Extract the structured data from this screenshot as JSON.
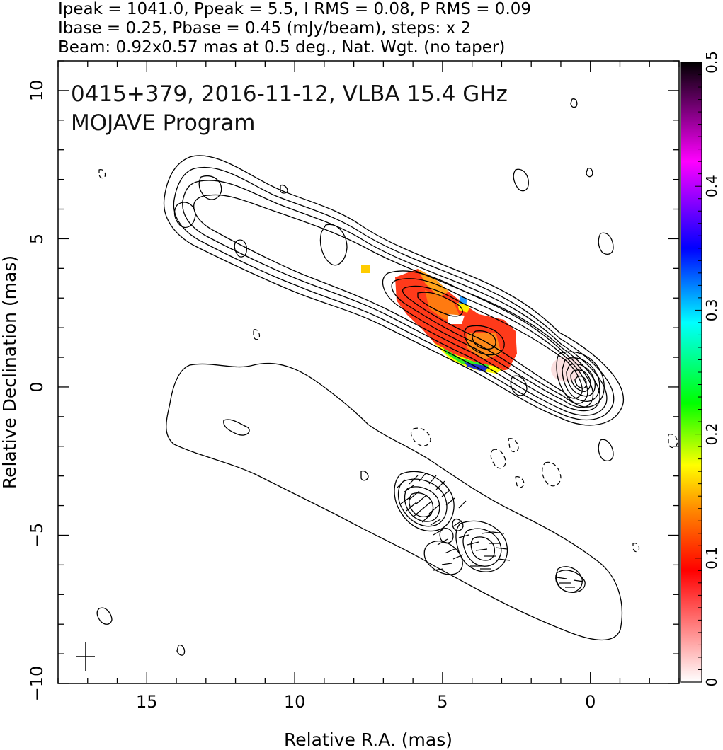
{
  "header": {
    "line1": "Ipeak = 1041.0, Ppeak = 5.5, I RMS = 0.08, P RMS = 0.09",
    "line2": "Ibase = 0.25, Pbase = 0.45 (mJy/beam), steps: x 2",
    "line3": "Beam: 0.92x0.57 mas at 0.5 deg., Nat. Wgt. (no taper)"
  },
  "plot_text": {
    "title": "0415+379, 2016-11-12, VLBA 15.4 GHz",
    "subtitle": "MOJAVE Program"
  },
  "chart_data": {
    "type": "contour-map",
    "xlabel": "Relative R.A. (mas)",
    "ylabel": "Relative Declination (mas)",
    "xlim": [
      18.0,
      -3.0
    ],
    "ylim": [
      -10.0,
      11.0
    ],
    "x_ticks": [
      15,
      10,
      5,
      0
    ],
    "x_tick_labels": [
      "15",
      "10",
      "5",
      "0"
    ],
    "y_ticks": [
      -10,
      -5,
      0,
      5,
      10
    ],
    "y_tick_labels": [
      "−10",
      "−5",
      "0",
      "5",
      "10"
    ],
    "colorbar": {
      "range": [
        0,
        0.5
      ],
      "ticks": [
        0,
        0.1,
        0.2,
        0.3,
        0.4,
        0.5
      ],
      "tick_labels": [
        "0",
        "0.1",
        "0.2",
        "0.3",
        "0.4",
        "0.5"
      ],
      "colors": [
        "#ffffff",
        "#ff0000",
        "#ff8c00",
        "#ffff00",
        "#00ff00",
        "#00ffff",
        "#0000ff",
        "#ff00ff",
        "#000000"
      ]
    },
    "stokes_I_peak_position": [
      0.2,
      0.2
    ],
    "stokes_I_jet_ridge": [
      [
        0.2,
        0.2
      ],
      [
        1.5,
        0.8
      ],
      [
        3.3,
        1.7
      ],
      [
        4.5,
        2.3
      ],
      [
        5.7,
        3.2
      ],
      [
        7.0,
        3.9
      ],
      [
        8.5,
        4.5
      ],
      [
        10.0,
        5.0
      ],
      [
        12.0,
        5.7
      ],
      [
        14.0,
        6.3
      ],
      [
        14.5,
        6.5
      ]
    ],
    "polarized_intensity_peaks": [
      [
        5.8,
        -3.9
      ],
      [
        3.4,
        -5.5
      ]
    ],
    "beam": {
      "major_mas": 0.92,
      "minor_mas": 0.57,
      "pa_deg": 0.5
    },
    "fractional_pol_region_extent_x": [
      2.5,
      6.8
    ]
  }
}
